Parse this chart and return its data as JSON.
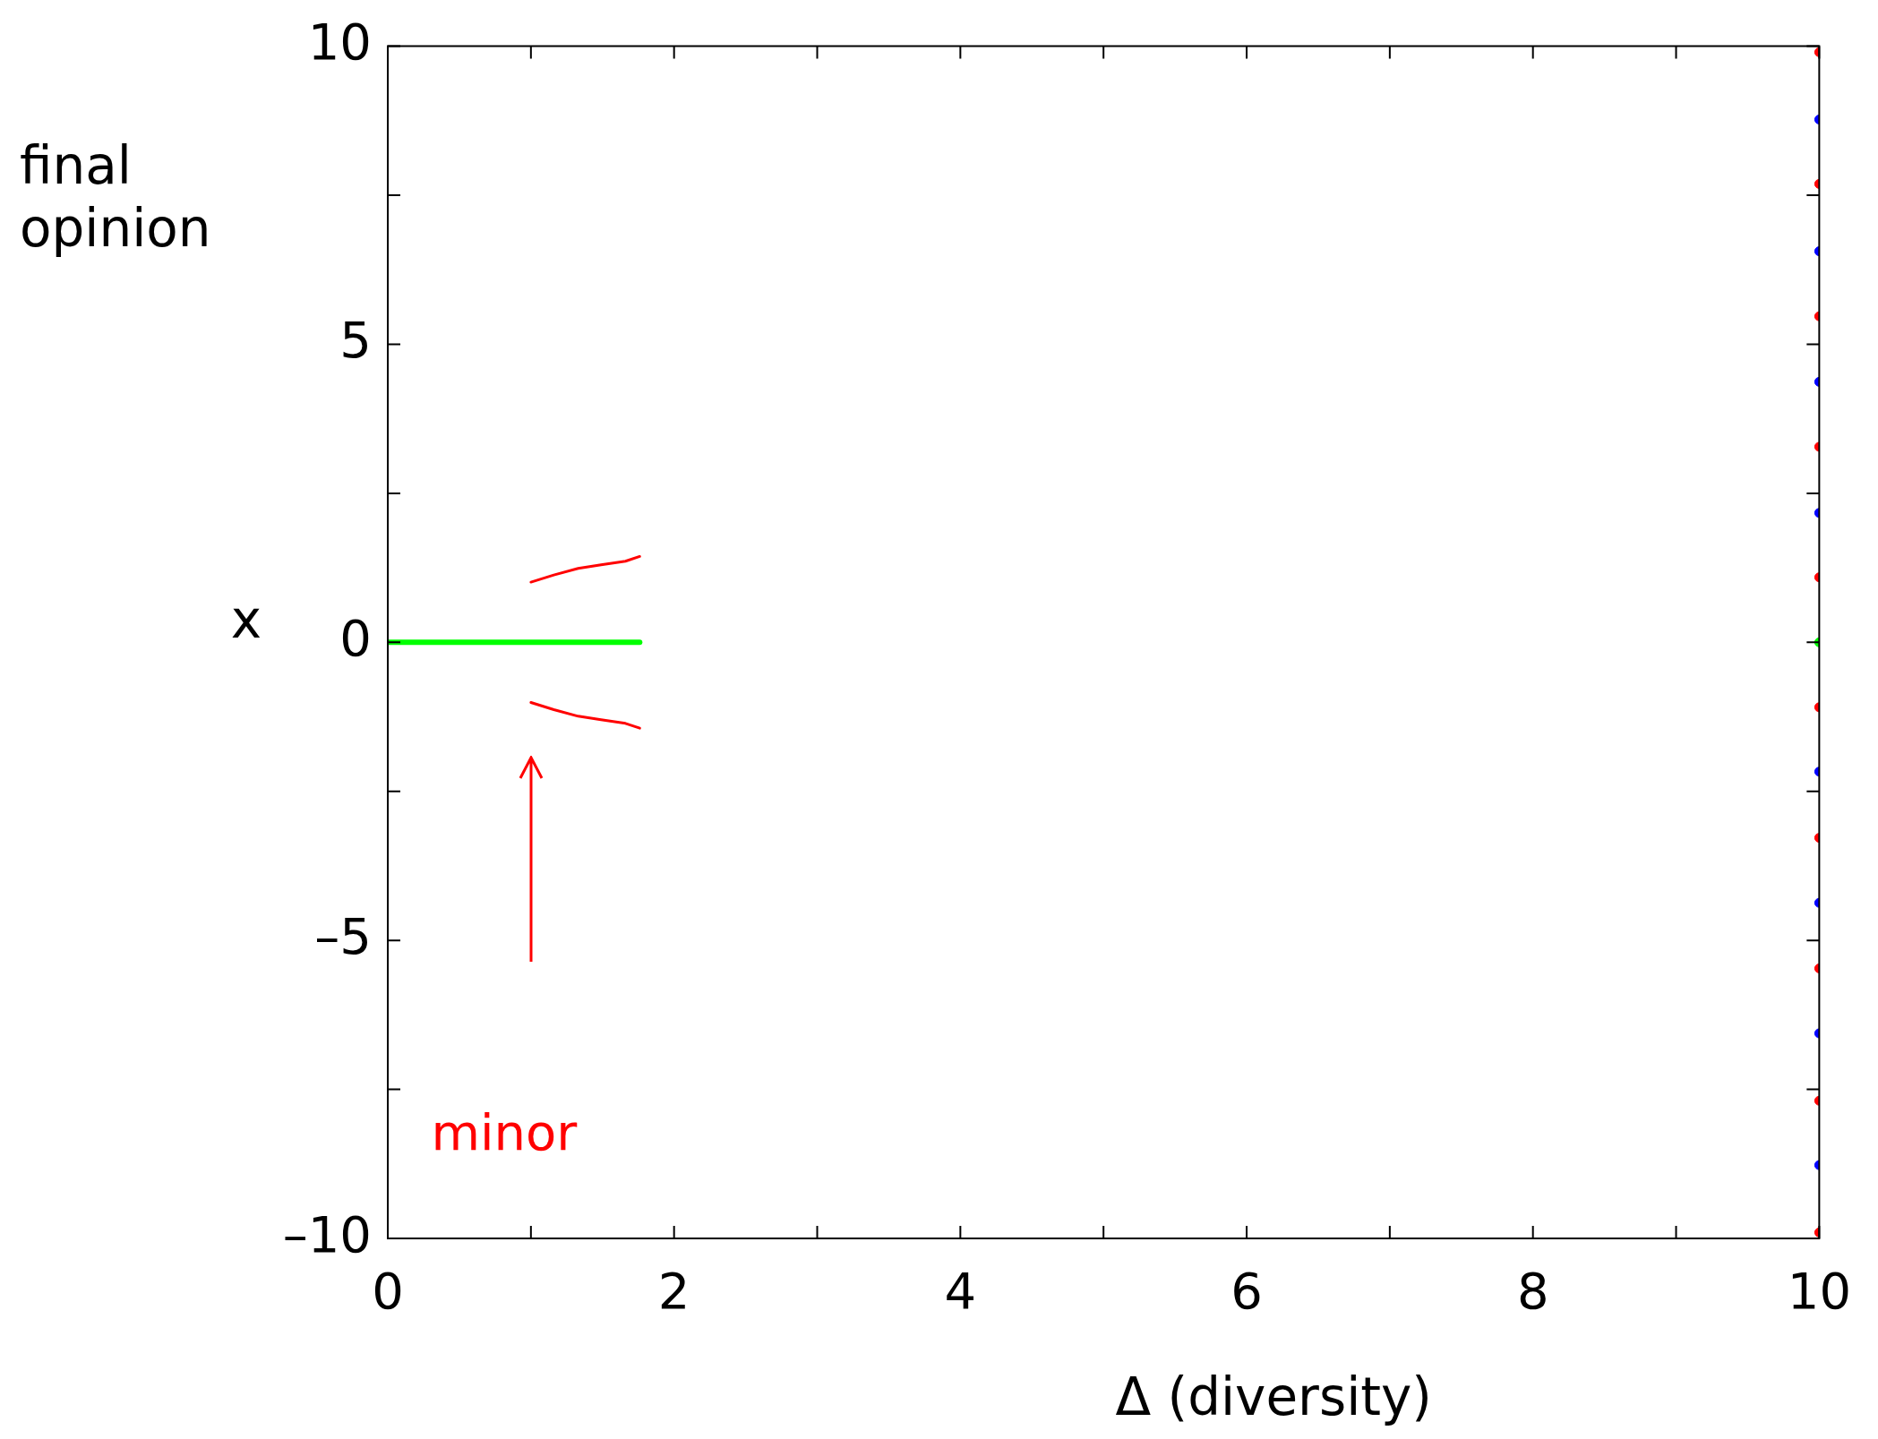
{
  "chart_data": {
    "type": "line",
    "xlabel": "Δ (diversity)",
    "ylabel": "final opinion",
    "xlim": [
      0,
      10
    ],
    "xticks": [
      0,
      {
        "value": 1,
        "label": null
      },
      2,
      {
        "value": 3,
        "label": null
      },
      4,
      {
        "value": 5,
        "label": null
      },
      6,
      {
        "value": 7,
        "label": null
      },
      8,
      {
        "value": 9,
        "label": null
      },
      10
    ],
    "ylim": [
      -10,
      10
    ],
    "yticks": [
      {
        "value": -10,
        "label": "–10"
      },
      {
        "value": -7.5,
        "label": null
      },
      {
        "value": -5,
        "label": "–5"
      },
      {
        "value": -2.5,
        "label": null
      },
      0,
      {
        "value": 2.5,
        "label": null
      },
      5,
      {
        "value": 7.5,
        "label": null
      },
      10
    ],
    "grid": false,
    "legend": false,
    "series": [
      {
        "color": "#00ff00",
        "x": [
          0,
          1.76
        ],
        "values": [
          0,
          0
        ],
        "marker": "none"
      },
      {
        "color": "#ff0000",
        "x": [
          1,
          1.16,
          1.33,
          1.49,
          1.66,
          1.76
        ],
        "values": [
          1.01,
          1.13,
          1.24,
          1.3,
          1.36,
          1.44
        ],
        "marker": "none"
      },
      {
        "color": "#ff0000",
        "x": [
          1,
          1.16,
          1.33,
          1.49,
          1.66,
          1.76
        ],
        "values": [
          -1.01,
          -1.13,
          -1.24,
          -1.3,
          -1.36,
          -1.44
        ],
        "marker": "none"
      },
      {
        "type": "scatter",
        "color": "#0000ff",
        "x": [
          10,
          10,
          10,
          10,
          10,
          10,
          10,
          10
        ],
        "values": [
          8.77,
          6.56,
          4.37,
          2.17,
          -2.17,
          -4.37,
          -6.56,
          -8.77
        ],
        "marker": "circle"
      },
      {
        "type": "scatter",
        "color": "#ff0000",
        "x": [
          10,
          10,
          10,
          10,
          10,
          10,
          10,
          10,
          10,
          10
        ],
        "values": [
          9.9,
          7.69,
          5.47,
          3.28,
          1.09,
          -1.09,
          -3.28,
          -5.47,
          -7.69,
          -9.9
        ],
        "marker": "circle"
      },
      {
        "type": "scatter",
        "color": "#00ff00",
        "x": [
          10
        ],
        "values": [
          0
        ],
        "marker": "circle"
      }
    ],
    "annotations": [
      "x",
      "minor"
    ]
  }
}
